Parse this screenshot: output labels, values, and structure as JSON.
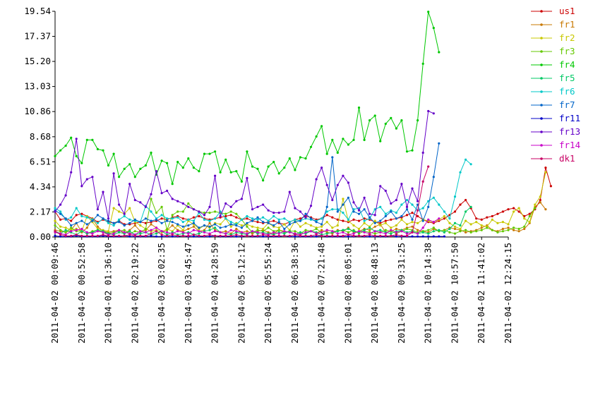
{
  "chart_data": {
    "type": "line",
    "title": "",
    "xlabel": "",
    "ylabel": "",
    "ylim": [
      0,
      19.54
    ],
    "y_ticks": [
      "0.00",
      "2.17",
      "4.34",
      "6.51",
      "8.68",
      "10.86",
      "13.03",
      "15.20",
      "17.37",
      "19.54"
    ],
    "x_tick_labels": [
      "2011-04-02 00:09:46",
      "2011-04-02 00:52:58",
      "2011-04-02 01:36:10",
      "2011-04-02 02:19:22",
      "2011-04-02 03:02:35",
      "2011-04-02 03:45:47",
      "2011-04-02 04:28:59",
      "2011-04-02 05:12:12",
      "2011-04-02 05:55:24",
      "2011-04-02 06:38:36",
      "2011-04-02 07:21:48",
      "2011-04-02 08:05:01",
      "2011-04-02 08:48:13",
      "2011-04-02 09:31:25",
      "2011-04-02 10:14:38",
      "2011-04-02 10:57:50",
      "2011-04-02 11:41:02",
      "2011-04-02 12:24:15"
    ],
    "points_per_interval": 5,
    "grid": false,
    "legend_position": "right",
    "series": [
      {
        "name": "us1",
        "color": "#cc0000",
        "values": [
          2.2,
          1.5,
          1.6,
          1.4,
          1.9,
          2.0,
          1.8,
          1.6,
          1.3,
          1.5,
          1.3,
          1.2,
          1.4,
          1.1,
          1.1,
          1.2,
          1.3,
          1.2,
          1.3,
          1.4,
          1.6,
          1.5,
          1.7,
          1.8,
          1.6,
          1.5,
          1.7,
          1.8,
          1.6,
          1.5,
          1.6,
          1.7,
          1.8,
          1.9,
          1.7,
          1.5,
          1.6,
          1.4,
          1.3,
          1.2,
          1.3,
          1.4,
          1.2,
          1.1,
          1.3,
          1.5,
          1.6,
          1.8,
          1.7,
          1.5,
          1.6,
          1.9,
          1.7,
          1.5,
          1.4,
          1.3,
          1.5,
          1.4,
          1.6,
          1.5,
          1.3,
          1.2,
          1.4,
          1.5,
          1.6,
          1.7,
          1.9,
          2.1,
          1.8,
          1.5,
          1.3,
          1.2,
          1.4,
          1.6,
          1.9,
          2.2,
          2.8,
          3.2,
          2.5,
          1.6,
          1.5,
          1.7,
          1.8,
          2.0,
          2.2,
          2.4,
          2.5,
          2.2,
          1.8,
          2.0,
          2.4,
          3.2,
          6.0,
          4.4
        ]
      },
      {
        "name": "fr1",
        "color": "#c87800",
        "values": [
          0.6,
          0.5,
          0.4,
          0.6,
          1.2,
          0.4,
          0.8,
          1.6,
          0.9,
          0.5,
          0.4,
          0.5,
          0.6,
          0.3,
          0.6,
          1.0,
          0.5,
          0.6,
          1.1,
          0.8,
          0.5,
          0.6,
          1.0,
          0.6,
          0.5,
          0.7,
          0.9,
          0.5,
          0.6,
          1.2,
          0.6,
          0.4,
          0.5,
          0.3,
          0.7,
          0.4,
          0.5,
          0.3,
          0.5,
          0.6,
          0.4,
          0.3,
          0.6,
          0.5,
          0.4,
          0.3,
          0.2,
          0.4,
          0.5,
          0.3,
          0.6,
          0.4,
          0.3,
          0.6,
          0.5,
          0.8,
          0.4,
          0.5,
          0.7,
          0.6,
          0.9,
          1.1,
          0.4,
          0.5,
          0.7,
          0.6,
          0.8,
          0.9,
          0.6,
          0.5,
          0.4,
          0.7,
          0.5,
          0.6,
          0.8,
          0.7,
          0.6,
          0.4,
          0.5,
          0.6,
          0.8,
          1.0,
          0.6,
          0.5,
          0.7,
          0.8,
          0.6,
          0.5,
          0.7,
          1.2,
          2.6,
          3.0,
          2.4
        ]
      },
      {
        "name": "fr2",
        "color": "#c8c800",
        "values": [
          1.4,
          0.9,
          0.8,
          0.6,
          0.7,
          0.5,
          1.8,
          1.3,
          0.7,
          0.6,
          0.5,
          2.5,
          2.2,
          2.0,
          2.5,
          1.3,
          1.0,
          0.7,
          0.5,
          0.6,
          0.4,
          0.7,
          0.5,
          1.0,
          0.6,
          1.4,
          1.1,
          0.7,
          1.0,
          0.8,
          1.2,
          1.1,
          1.6,
          0.9,
          1.2,
          1.0,
          1.1,
          0.9,
          0.8,
          0.7,
          1.2,
          0.9,
          0.8,
          1.1,
          0.6,
          1.4,
          0.9,
          1.2,
          1.0,
          0.8,
          0.9,
          1.3,
          0.8,
          1.0,
          3.3,
          1.4,
          1.0,
          0.7,
          1.2,
          0.9,
          1.4,
          1.0,
          1.2,
          0.8,
          1.0,
          1.5,
          1.1,
          1.3,
          1.2,
          1.5,
          1.4,
          1.3,
          1.5,
          1.8,
          1.2,
          0.9,
          0.7,
          1.4,
          1.1,
          1.3,
          1.0,
          0.9,
          1.5,
          1.2,
          1.3,
          1.1,
          2.2,
          2.5,
          1.6,
          1.3,
          2.8,
          3.5,
          5.6
        ]
      },
      {
        "name": "fr3",
        "color": "#64c800",
        "values": [
          1.0,
          0.6,
          0.4,
          0.8,
          0.5,
          0.5,
          0.3,
          0.5,
          0.6,
          0.4,
          0.3,
          0.4,
          0.5,
          0.6,
          0.3,
          0.5,
          0.4,
          0.7,
          3.3,
          2.1,
          2.6,
          0.6,
          1.9,
          2.2,
          2.2,
          2.9,
          2.4,
          2.2,
          2.1,
          2.1,
          2.2,
          2.1,
          2.0,
          2.2,
          2.0,
          1.5,
          0.9,
          0.4,
          0.6,
          0.5,
          0.8,
          0.5,
          0.6,
          0.4,
          0.5,
          0.5,
          0.3,
          0.6,
          0.5,
          0.7,
          0.4,
          0.6,
          0.5,
          0.5,
          0.6,
          0.4,
          0.6,
          0.3,
          0.5,
          0.4,
          0.3,
          0.4,
          0.6,
          0.5,
          0.3,
          0.5,
          0.7,
          0.6,
          0.4,
          0.5,
          0.6,
          0.8,
          0.5,
          0.6,
          0.4,
          0.3,
          0.5,
          0.6,
          0.4,
          0.5,
          0.6,
          0.8,
          0.6,
          0.4,
          0.5,
          0.6,
          0.8,
          0.7,
          0.9,
          1.8,
          2.5
        ]
      },
      {
        "name": "fr4",
        "color": "#00c800",
        "values": [
          7.0,
          7.5,
          7.9,
          8.6,
          7.0,
          6.4,
          8.4,
          8.4,
          7.6,
          7.5,
          6.2,
          7.2,
          5.2,
          5.9,
          6.3,
          5.2,
          5.9,
          6.2,
          7.3,
          5.4,
          6.6,
          6.4,
          4.6,
          6.5,
          6.0,
          6.8,
          6.0,
          5.7,
          7.2,
          7.2,
          7.4,
          5.6,
          6.7,
          5.6,
          5.7,
          4.8,
          7.4,
          6.1,
          5.9,
          4.9,
          6.1,
          6.5,
          5.5,
          6.0,
          6.8,
          5.8,
          6.9,
          6.8,
          7.8,
          8.7,
          9.6,
          7.2,
          8.4,
          7.3,
          8.5,
          8.0,
          8.4,
          11.2,
          8.4,
          10.1,
          10.5,
          8.3,
          9.8,
          10.3,
          9.4,
          10.1,
          7.4,
          7.5,
          10.1,
          15.0,
          19.5,
          18.1,
          16.0
        ]
      },
      {
        "name": "fr5",
        "color": "#00c864",
        "values": [
          0.5,
          0.3,
          0.6,
          0.4,
          0.2,
          0.5,
          0.3,
          0.4,
          0.6,
          0.5,
          0.3,
          0.2,
          0.4,
          0.3,
          0.5,
          0.2,
          0.3,
          0.4,
          0.2,
          0.3,
          0.5,
          0.2,
          0.4,
          0.2,
          0.3,
          0.4,
          0.2,
          0.3,
          0.5,
          0.6,
          0.8,
          0.4,
          0.3,
          0.2,
          0.4,
          0.3,
          0.2,
          0.5,
          0.3,
          0.4,
          0.3,
          0.2,
          0.4,
          0.3,
          0.5,
          0.2,
          0.4,
          0.3,
          0.5,
          0.4,
          0.2,
          0.3,
          0.4,
          0.5,
          0.6,
          0.7,
          0.5,
          0.4,
          0.6,
          0.8,
          0.5,
          0.6,
          0.4,
          0.3,
          0.5,
          0.6,
          0.4,
          0.5,
          0.3,
          0.4,
          0.3,
          0.5,
          0.6,
          0.4,
          0.7,
          1.2,
          1.0,
          2.2,
          2.6
        ]
      },
      {
        "name": "fr6",
        "color": "#00c8c8",
        "values": [
          2.5,
          2.2,
          1.5,
          1.7,
          2.5,
          1.8,
          1.7,
          1.5,
          1.2,
          1.6,
          1.2,
          1.0,
          1.5,
          1.8,
          1.5,
          1.4,
          1.3,
          2.7,
          2.2,
          1.6,
          1.9,
          1.6,
          1.6,
          1.7,
          1.3,
          1.5,
          1.4,
          2.1,
          1.5,
          1.4,
          1.6,
          2.2,
          1.6,
          1.3,
          1.1,
          1.5,
          1.8,
          1.6,
          1.5,
          1.7,
          1.4,
          1.8,
          1.5,
          1.6,
          1.3,
          1.5,
          1.4,
          1.6,
          1.5,
          1.4,
          1.6,
          2.2,
          2.4,
          2.4,
          2.1,
          1.5,
          2.4,
          2.5,
          1.4,
          1.6,
          2.4,
          2.6,
          2.0,
          2.3,
          2.1,
          2.8,
          3.2,
          2.8,
          2.3,
          2.5,
          3.1,
          3.4,
          2.8,
          2.2,
          1.6,
          3.5,
          5.6,
          6.7,
          6.3
        ]
      },
      {
        "name": "fr7",
        "color": "#0064c8",
        "values": [
          2.3,
          2.0,
          1.6,
          1.0,
          1.2,
          1.4,
          1.1,
          1.4,
          1.9,
          1.6,
          1.4,
          1.2,
          1.3,
          1.0,
          1.2,
          1.5,
          1.3,
          1.6,
          1.4,
          1.5,
          1.2,
          1.4,
          1.3,
          1.1,
          0.9,
          1.0,
          1.2,
          0.8,
          1.0,
          0.9,
          1.1,
          0.8,
          0.9,
          1.1,
          1.0,
          0.8,
          1.2,
          1.4,
          1.7,
          1.3,
          1.2,
          1.0,
          1.3,
          0.7,
          1.1,
          1.3,
          1.4,
          2.0,
          1.6,
          1.3,
          1.1,
          2.6,
          6.9,
          2.2,
          2.8,
          3.4,
          2.2,
          2.0,
          2.4,
          1.7,
          1.2,
          1.4,
          1.8,
          2.2,
          1.6,
          1.8,
          2.4,
          1.5,
          2.8,
          1.4,
          2.6,
          5.2,
          8.1
        ]
      },
      {
        "name": "fr11",
        "color": "#0000c8",
        "values": [
          0.1,
          0.05,
          0.05,
          0.05,
          0.1,
          0.05,
          0.05,
          0.05,
          0.05,
          0.1,
          0.05,
          0.05,
          0.05,
          0.1,
          0.05,
          0.05,
          0.05,
          0.05,
          0.1,
          0.05,
          0.05,
          0.05,
          0.05,
          0.05,
          0.1,
          0.05,
          0.05,
          0.05,
          0.05,
          0.05,
          0.1,
          0.05,
          0.05,
          0.05,
          0.05,
          0.05,
          0.1,
          0.05,
          0.05,
          0.05,
          0.05,
          0.05,
          0.05,
          0.1,
          0.05,
          0.05,
          0.05,
          0.05,
          0.05,
          0.05,
          0.1,
          0.05,
          0.05,
          0.05,
          0.05,
          0.05,
          0.05,
          0.1,
          0.05,
          0.05,
          0.05,
          0.05,
          0.05,
          0.1,
          0.05,
          0.05,
          0.05,
          0.05,
          0.05,
          0.05,
          0.05,
          0.05,
          0.05,
          0.05
        ]
      },
      {
        "name": "fr13",
        "color": "#6400c8",
        "values": [
          2.2,
          2.8,
          3.6,
          5.6,
          8.5,
          4.4,
          5.0,
          5.2,
          2.4,
          3.9,
          1.6,
          5.5,
          2.8,
          2.0,
          4.6,
          3.2,
          3.0,
          2.6,
          3.7,
          5.7,
          3.8,
          4.0,
          3.3,
          3.1,
          2.9,
          2.6,
          2.4,
          2.2,
          1.9,
          2.6,
          5.3,
          1.8,
          2.9,
          2.6,
          3.1,
          3.3,
          5.1,
          2.4,
          2.6,
          2.8,
          2.3,
          2.1,
          2.1,
          2.2,
          3.9,
          2.5,
          2.2,
          1.7,
          2.7,
          5.0,
          6.0,
          4.5,
          3.2,
          4.5,
          5.3,
          4.7,
          3.0,
          2.3,
          3.4,
          2.0,
          1.9,
          4.4,
          4.0,
          2.9,
          3.2,
          4.6,
          2.6,
          4.2,
          3.1,
          7.3,
          10.9,
          10.7
        ]
      },
      {
        "name": "fr14",
        "color": "#c800c8",
        "values": [
          0.4,
          0.3,
          0.2,
          0.5,
          0.6,
          0.7,
          0.4,
          0.3,
          0.5,
          0.4,
          0.2,
          0.3,
          0.6,
          0.4,
          0.3,
          0.2,
          0.5,
          0.4,
          0.6,
          0.8,
          0.5,
          0.4,
          0.3,
          0.5,
          0.4,
          0.3,
          0.6,
          0.5,
          0.4,
          0.3,
          0.5,
          0.4,
          0.3,
          0.6,
          0.5,
          0.4,
          0.3,
          0.5,
          0.4,
          0.3,
          0.2,
          0.4,
          0.3,
          0.5,
          0.4,
          0.3,
          0.2,
          0.4,
          0.5,
          0.3,
          0.4,
          0.6,
          0.5,
          0.3,
          0.4,
          0.2,
          0.3,
          0.5,
          0.4,
          0.3,
          0.5,
          0.4,
          0.3,
          0.6,
          0.4,
          0.5,
          0.3,
          0.4,
          0.3,
          0.8,
          1.5,
          1.3,
          1.6
        ]
      },
      {
        "name": "dk1",
        "color": "#c80064",
        "values": [
          0.5,
          0.2,
          0.1,
          0.1,
          0.2,
          0.1,
          0.1,
          0.1,
          0.1,
          0.2,
          0.1,
          0.1,
          0.1,
          0.1,
          0.2,
          0.1,
          0.1,
          0.1,
          0.3,
          0.5,
          0.2,
          0.1,
          0.2,
          0.1,
          0.1,
          0.1,
          0.2,
          0.1,
          0.1,
          0.2,
          0.1,
          0.1,
          0.1,
          0.1,
          0.2,
          0.1,
          0.1,
          0.1,
          0.1,
          0.2,
          0.1,
          0.1,
          0.1,
          0.1,
          0.1,
          0.2,
          0.1,
          0.1,
          0.1,
          0.2,
          0.1,
          0.1,
          0.1,
          0.1,
          0.1,
          0.2,
          0.1,
          0.1,
          0.1,
          0.2,
          0.1,
          0.1,
          0.1,
          0.1,
          0.2,
          0.1,
          0.1,
          0.4,
          2.3,
          4.8,
          6.1
        ]
      }
    ]
  }
}
